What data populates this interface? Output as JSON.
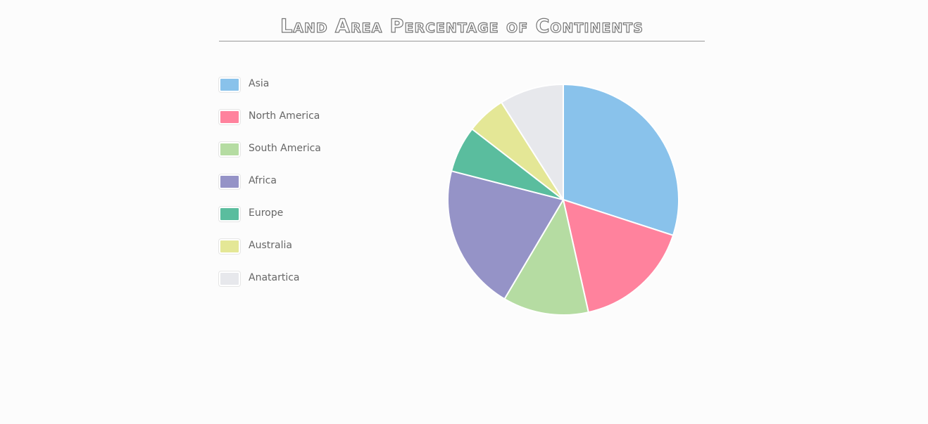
{
  "chart_data": {
    "type": "pie",
    "title": "Land Area Percentage of Continents",
    "categories": [
      "Asia",
      "North America",
      "South America",
      "Africa",
      "Europe",
      "Australia",
      "Anatartica"
    ],
    "values": [
      30,
      16.5,
      12,
      20.5,
      6.5,
      5.5,
      9
    ],
    "colors": [
      "#89c2eb",
      "#ff829d",
      "#b5dca2",
      "#9593c7",
      "#5abd9e",
      "#e4e796",
      "#e7e8ec"
    ],
    "legend_position": "left",
    "start_angle": "top",
    "direction": "clockwise"
  }
}
